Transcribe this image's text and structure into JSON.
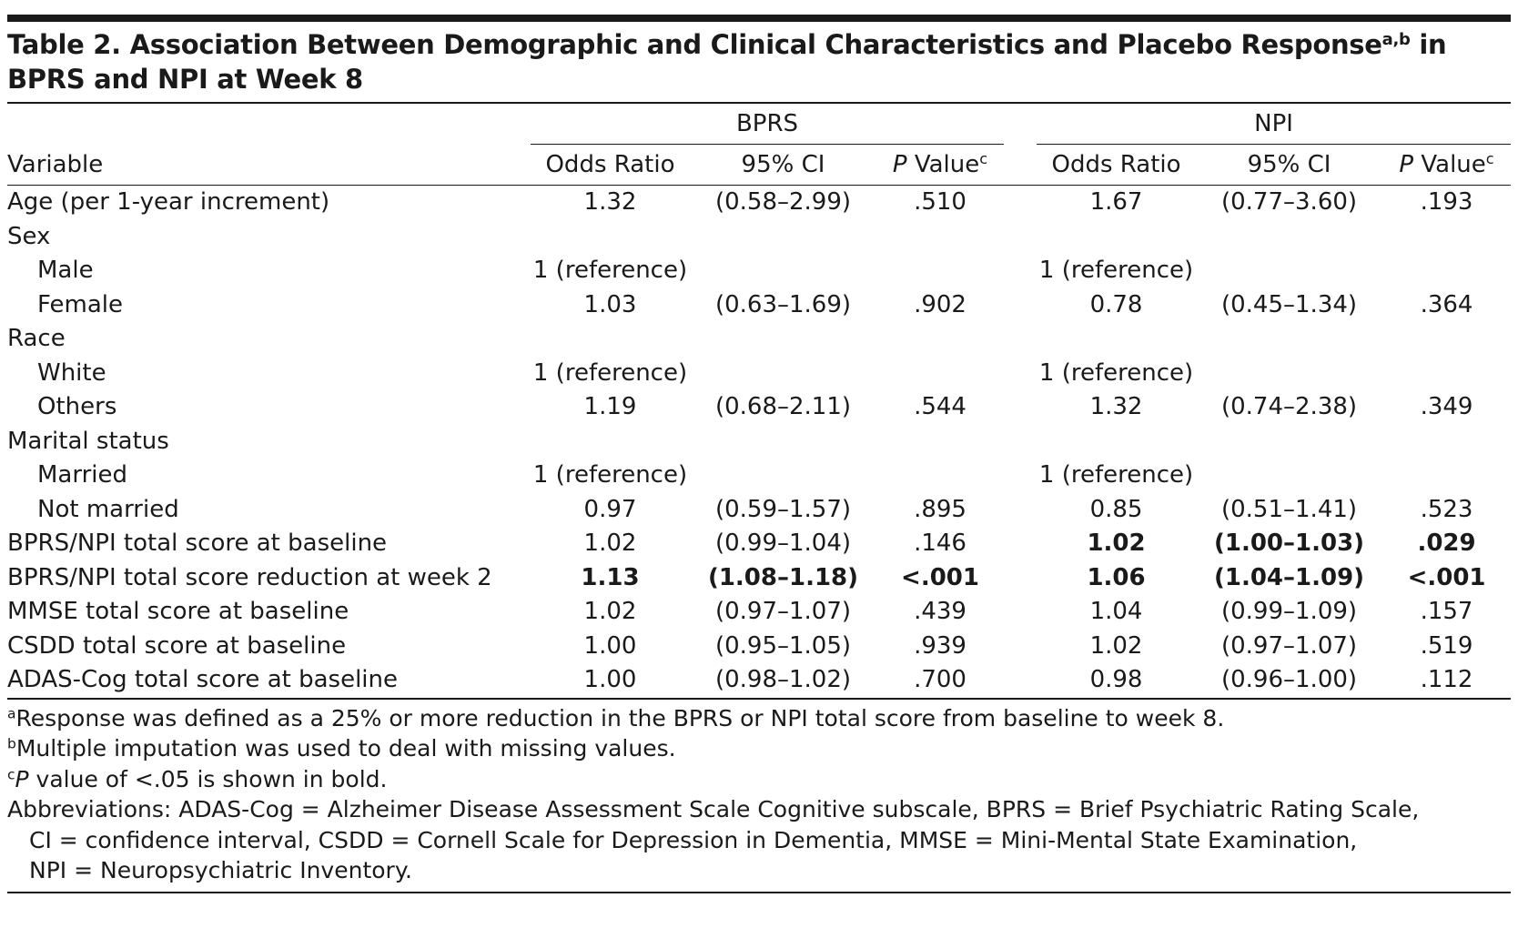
{
  "title": {
    "main": "Table 2. Association Between Demographic and Clinical Characteristics and Placebo Response",
    "sup": "a,b",
    "end": " in BPRS and NPI at Week 8"
  },
  "table": {
    "stub": "Variable",
    "groups": [
      {
        "name": "BPRS",
        "columns": [
          {
            "text": "Odds Ratio"
          },
          {
            "text": "95% CI"
          },
          {
            "italic": "P",
            "text": " Value",
            "sup": "c"
          }
        ]
      },
      {
        "name": "NPI",
        "columns": [
          {
            "text": "Odds Ratio"
          },
          {
            "text": "95% CI"
          },
          {
            "italic": "P",
            "text": " Value",
            "sup": "c"
          }
        ]
      }
    ],
    "rows": [
      {
        "label": "Age (per 1-year increment)",
        "indent": false,
        "cells": [
          "1.32",
          "(0.58–2.99)",
          ".510",
          "1.67",
          "(0.77–3.60)",
          ".193"
        ],
        "bold": []
      },
      {
        "label": "Sex",
        "indent": false
      },
      {
        "label": "Male",
        "indent": true,
        "cells": [
          "1 (reference)",
          null,
          null,
          "1 (reference)",
          null,
          null
        ],
        "bold": []
      },
      {
        "label": "Female",
        "indent": true,
        "cells": [
          "1.03",
          "(0.63–1.69)",
          ".902",
          "0.78",
          "(0.45–1.34)",
          ".364"
        ],
        "bold": []
      },
      {
        "label": "Race",
        "indent": false
      },
      {
        "label": "White",
        "indent": true,
        "cells": [
          "1 (reference)",
          null,
          null,
          "1 (reference)",
          null,
          null
        ],
        "bold": []
      },
      {
        "label": "Others",
        "indent": true,
        "cells": [
          "1.19",
          "(0.68–2.11)",
          ".544",
          "1.32",
          "(0.74–2.38)",
          ".349"
        ],
        "bold": []
      },
      {
        "label": "Marital status",
        "indent": false
      },
      {
        "label": "Married",
        "indent": true,
        "cells": [
          "1 (reference)",
          null,
          null,
          "1 (reference)",
          null,
          null
        ],
        "bold": []
      },
      {
        "label": "Not married",
        "indent": true,
        "cells": [
          "0.97",
          "(0.59–1.57)",
          ".895",
          "0.85",
          "(0.51–1.41)",
          ".523"
        ],
        "bold": []
      },
      {
        "label": "BPRS/NPI total score at baseline",
        "indent": false,
        "cells": [
          "1.02",
          "(0.99–1.04)",
          ".146",
          "1.02",
          "(1.00–1.03)",
          ".029"
        ],
        "bold": [
          3,
          4,
          5
        ]
      },
      {
        "label": "BPRS/NPI total score reduction at week 2",
        "indent": false,
        "cells": [
          "1.13",
          "(1.08–1.18)",
          "<.001",
          "1.06",
          "(1.04–1.09)",
          "<.001"
        ],
        "bold": [
          0,
          1,
          2,
          3,
          4,
          5
        ]
      },
      {
        "label": "MMSE total score at baseline",
        "indent": false,
        "cells": [
          "1.02",
          "(0.97–1.07)",
          ".439",
          "1.04",
          "(0.99–1.09)",
          ".157"
        ],
        "bold": []
      },
      {
        "label": "CSDD total score at baseline",
        "indent": false,
        "cells": [
          "1.00",
          "(0.95–1.05)",
          ".939",
          "1.02",
          "(0.97–1.07)",
          ".519"
        ],
        "bold": []
      },
      {
        "label": "ADAS-Cog total score at baseline",
        "indent": false,
        "cells": [
          "1.00",
          "(0.98–1.02)",
          ".700",
          "0.98",
          "(0.96–1.00)",
          ".112"
        ],
        "bold": []
      }
    ]
  },
  "footnotes": [
    {
      "sup": "a",
      "text": "Response was defined as a 25% or more reduction in the BPRS or NPI total score from baseline to week 8."
    },
    {
      "sup": "b",
      "text": "Multiple imputation was used to deal with missing values."
    },
    {
      "sup": "c",
      "italic": "P",
      "text": " value of <.05 is shown in bold."
    }
  ],
  "abbreviations": [
    "Abbreviations: ADAS-Cog = Alzheimer Disease Assessment Scale Cognitive subscale, BPRS = Brief Psychiatric Rating Scale,",
    "CI = confidence interval, CSDD = Cornell Scale for Depression in Dementia, MMSE = Mini-Mental State Examination,",
    "NPI = Neuropsychiatric Inventory."
  ]
}
